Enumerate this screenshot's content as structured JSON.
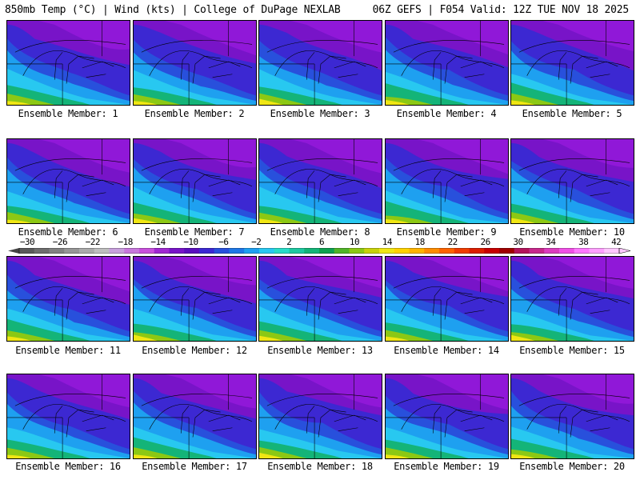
{
  "header": {
    "left": "850mb Temp (°C) | Wind (kts) | College of DuPage NEXLAB",
    "right": "06Z GEFS | F054 Valid: 12Z TUE NOV 18 2025"
  },
  "members": [
    {
      "caption": "Ensemble Member: 1"
    },
    {
      "caption": "Ensemble Member: 2"
    },
    {
      "caption": "Ensemble Member: 3"
    },
    {
      "caption": "Ensemble Member: 4"
    },
    {
      "caption": "Ensemble Member: 5"
    },
    {
      "caption": "Ensemble Member: 6"
    },
    {
      "caption": "Ensemble Member: 7"
    },
    {
      "caption": "Ensemble Member: 8"
    },
    {
      "caption": "Ensemble Member: 9"
    },
    {
      "caption": "Ensemble Member: 10"
    },
    {
      "caption": "Ensemble Member: 11"
    },
    {
      "caption": "Ensemble Member: 12"
    },
    {
      "caption": "Ensemble Member: 13"
    },
    {
      "caption": "Ensemble Member: 14"
    },
    {
      "caption": "Ensemble Member: 15"
    },
    {
      "caption": "Ensemble Member: 16"
    },
    {
      "caption": "Ensemble Member: 17"
    },
    {
      "caption": "Ensemble Member: 18"
    },
    {
      "caption": "Ensemble Member: 19"
    },
    {
      "caption": "Ensemble Member: 20"
    }
  ],
  "colorbar": {
    "ticks": [
      "−30",
      "−26",
      "−22",
      "−18",
      "−14",
      "−10",
      "−6",
      "−2",
      "2",
      "6",
      "10",
      "14",
      "18",
      "22",
      "26",
      "30",
      "34",
      "38",
      "42"
    ],
    "colors": [
      "#5a5a5a",
      "#6e6e6e",
      "#828282",
      "#969696",
      "#aaaaaa",
      "#bebebe",
      "#c8a0dc",
      "#c878dc",
      "#c850dc",
      "#a028d2",
      "#7814c8",
      "#5a0fbe",
      "#3c28d2",
      "#2850dc",
      "#1e78e6",
      "#1ea0f0",
      "#28c8f0",
      "#28dcc8",
      "#1ec8a0",
      "#14b478",
      "#0fa050",
      "#50b428",
      "#8cc814",
      "#c8d20a",
      "#f0e614",
      "#ffd200",
      "#ffb400",
      "#ff8c00",
      "#ff6400",
      "#f03c00",
      "#dc1e00",
      "#c80000",
      "#a00000",
      "#b4145a",
      "#c8288c",
      "#dc3cbe",
      "#f050e6",
      "#ff78ff",
      "#ffa0ff",
      "#ffc8ff"
    ]
  }
}
